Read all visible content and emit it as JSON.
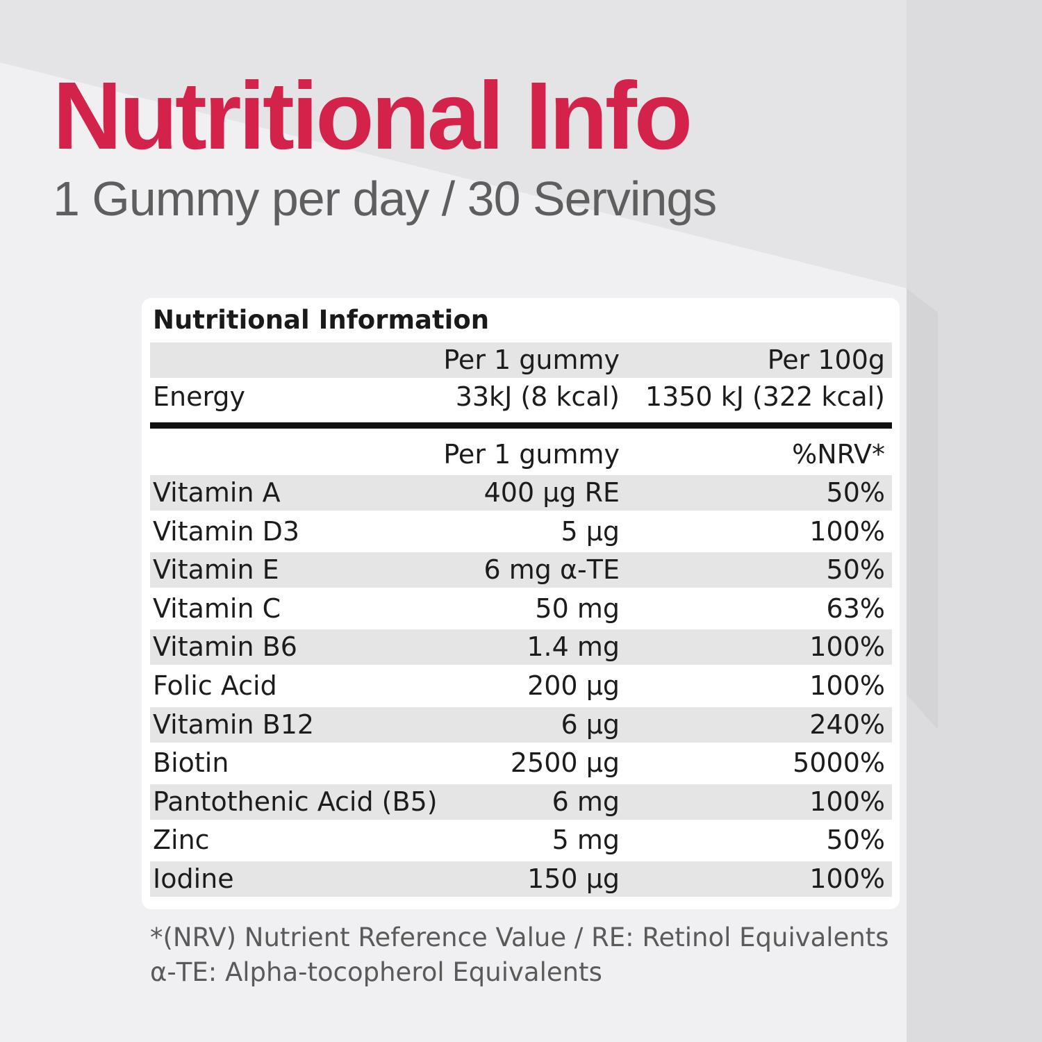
{
  "header": {
    "title": "Nutritional Info",
    "subtitle": "1 Gummy per day / 30 Servings"
  },
  "colors": {
    "accent": "#d3234a",
    "background": "#ececee",
    "panel": "#ffffff",
    "row_shade": "#e5e5e5"
  },
  "table": {
    "heading": "Nutritional Information",
    "energy_header": {
      "col2": "Per 1 gummy",
      "col3": "Per 100g"
    },
    "energy_row": {
      "name": "Energy",
      "per_gummy": "33kJ (8 kcal)",
      "per_100g": "1350 kJ (322 kcal)"
    },
    "nutrient_header": {
      "col2": "Per 1 gummy",
      "col3": "%NRV*"
    },
    "rows": [
      {
        "name": "Vitamin A",
        "amount": "400 µg RE",
        "nrv": "50%"
      },
      {
        "name": "Vitamin D3",
        "amount": "5 µg",
        "nrv": "100%"
      },
      {
        "name": "Vitamin E",
        "amount": "6 mg α-TE",
        "nrv": "50%"
      },
      {
        "name": "Vitamin C",
        "amount": "50 mg",
        "nrv": "63%"
      },
      {
        "name": "Vitamin B6",
        "amount": "1.4 mg",
        "nrv": "100%"
      },
      {
        "name": "Folic Acid",
        "amount": "200 µg",
        "nrv": "100%"
      },
      {
        "name": "Vitamin B12",
        "amount": "6 µg",
        "nrv": "240%"
      },
      {
        "name": "Biotin",
        "amount": "2500 µg",
        "nrv": "5000%"
      },
      {
        "name": "Pantothenic Acid (B5)",
        "amount": "6 mg",
        "nrv": "100%"
      },
      {
        "name": "Zinc",
        "amount": "5 mg",
        "nrv": "50%"
      },
      {
        "name": "Iodine",
        "amount": "150 µg",
        "nrv": "100%"
      }
    ]
  },
  "footnotes": {
    "line1": "*(NRV) Nutrient Reference Value / RE: Retinol Equivalents",
    "line2": "α-TE:  Alpha-tocopherol Equivalents"
  }
}
